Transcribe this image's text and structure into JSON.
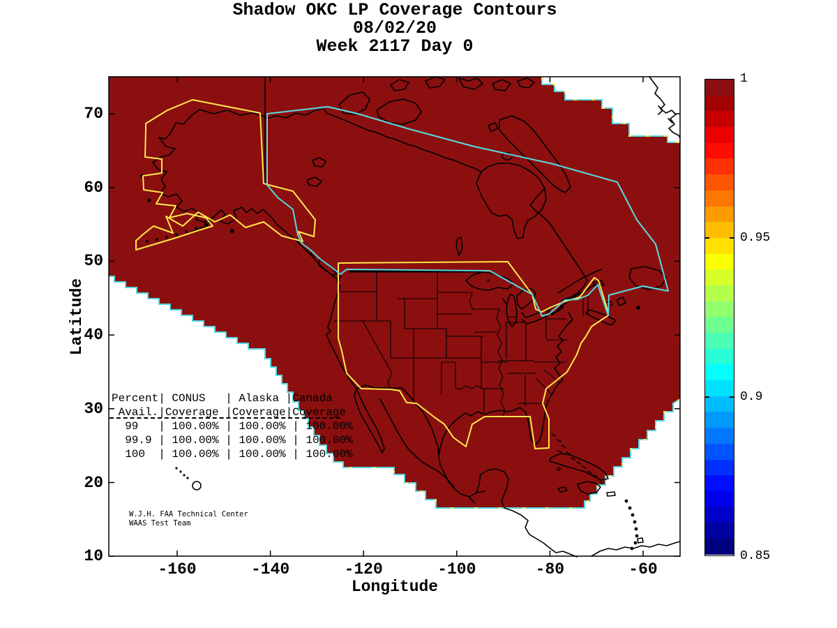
{
  "title": {
    "line1": "Shadow OKC LP Coverage Contours",
    "line2": "08/02/20",
    "line3": "Week 2117 Day 0"
  },
  "axes": {
    "xlabel": "Longitude",
    "ylabel": "Latitude",
    "xticks": [
      "-160",
      "-140",
      "-120",
      "-100",
      "-80",
      "-60"
    ],
    "yticks": [
      "70",
      "60",
      "50",
      "40",
      "30",
      "20",
      "10"
    ]
  },
  "colorbar": {
    "tick_labels": [
      "1",
      "0.95",
      "0.9",
      "0.85"
    ],
    "min": 0.85,
    "max": 1,
    "colormap": "jet"
  },
  "coverage_table": {
    "lines": [
      "Percent| CONUS   | Alaska |Canada",
      " Avail.|Coverage |Coverage|Coverage",
      "  99   | 100.00% | 100.00% | 100.00%",
      "  99.9 | 100.00% | 100.00% | 100.00%",
      "  100  | 100.00% | 100.00% | 100.00%"
    ]
  },
  "credit": {
    "line1": "W.J.H. FAA Technical Center",
    "line2": "WAAS Test Team"
  },
  "colors": {
    "coverage_fill": "#8b0f0f",
    "conus_alaska_contour": "#ffe84d",
    "canada_contour": "#58dbe3",
    "fringe": "#55d8e0",
    "geography": "#000000"
  },
  "chart_data": {
    "type": "heatmap",
    "title": "Shadow OKC LP Coverage Contours",
    "subtitle": [
      "08/02/20",
      "Week 2117 Day 0"
    ],
    "xlabel": "Longitude",
    "ylabel": "Latitude",
    "xlim": [
      -175,
      -52
    ],
    "ylim": [
      10,
      75
    ],
    "xticks": [
      -160,
      -140,
      -120,
      -100,
      -80,
      -60
    ],
    "yticks": [
      70,
      60,
      50,
      40,
      30,
      20,
      10
    ],
    "grid": false,
    "colorbar": {
      "range": [
        0.85,
        1.0
      ],
      "ticks": [
        1,
        0.95,
        0.9,
        0.85
      ],
      "colormap": "jet",
      "position": "right"
    },
    "field_description": "LP availability coverage over North America; entire plotted coverage region at value 1.0 (dark red)",
    "regions": [
      {
        "name": "CONUS",
        "contour_color": "yellow",
        "coverage": 1.0
      },
      {
        "name": "Alaska",
        "contour_color": "yellow",
        "coverage": 1.0
      },
      {
        "name": "Canada",
        "contour_color": "cyan",
        "coverage": 1.0
      }
    ],
    "coverage_table": {
      "columns": [
        "Percent Avail.",
        "CONUS Coverage",
        "Alaska Coverage",
        "Canada Coverage"
      ],
      "rows": [
        [
          "99",
          "100.00%",
          "100.00%",
          "100.00%"
        ],
        [
          "99.9",
          "100.00%",
          "100.00%",
          "100.00%"
        ],
        [
          "100",
          "100.00%",
          "100.00%",
          "100.00%"
        ]
      ]
    }
  }
}
